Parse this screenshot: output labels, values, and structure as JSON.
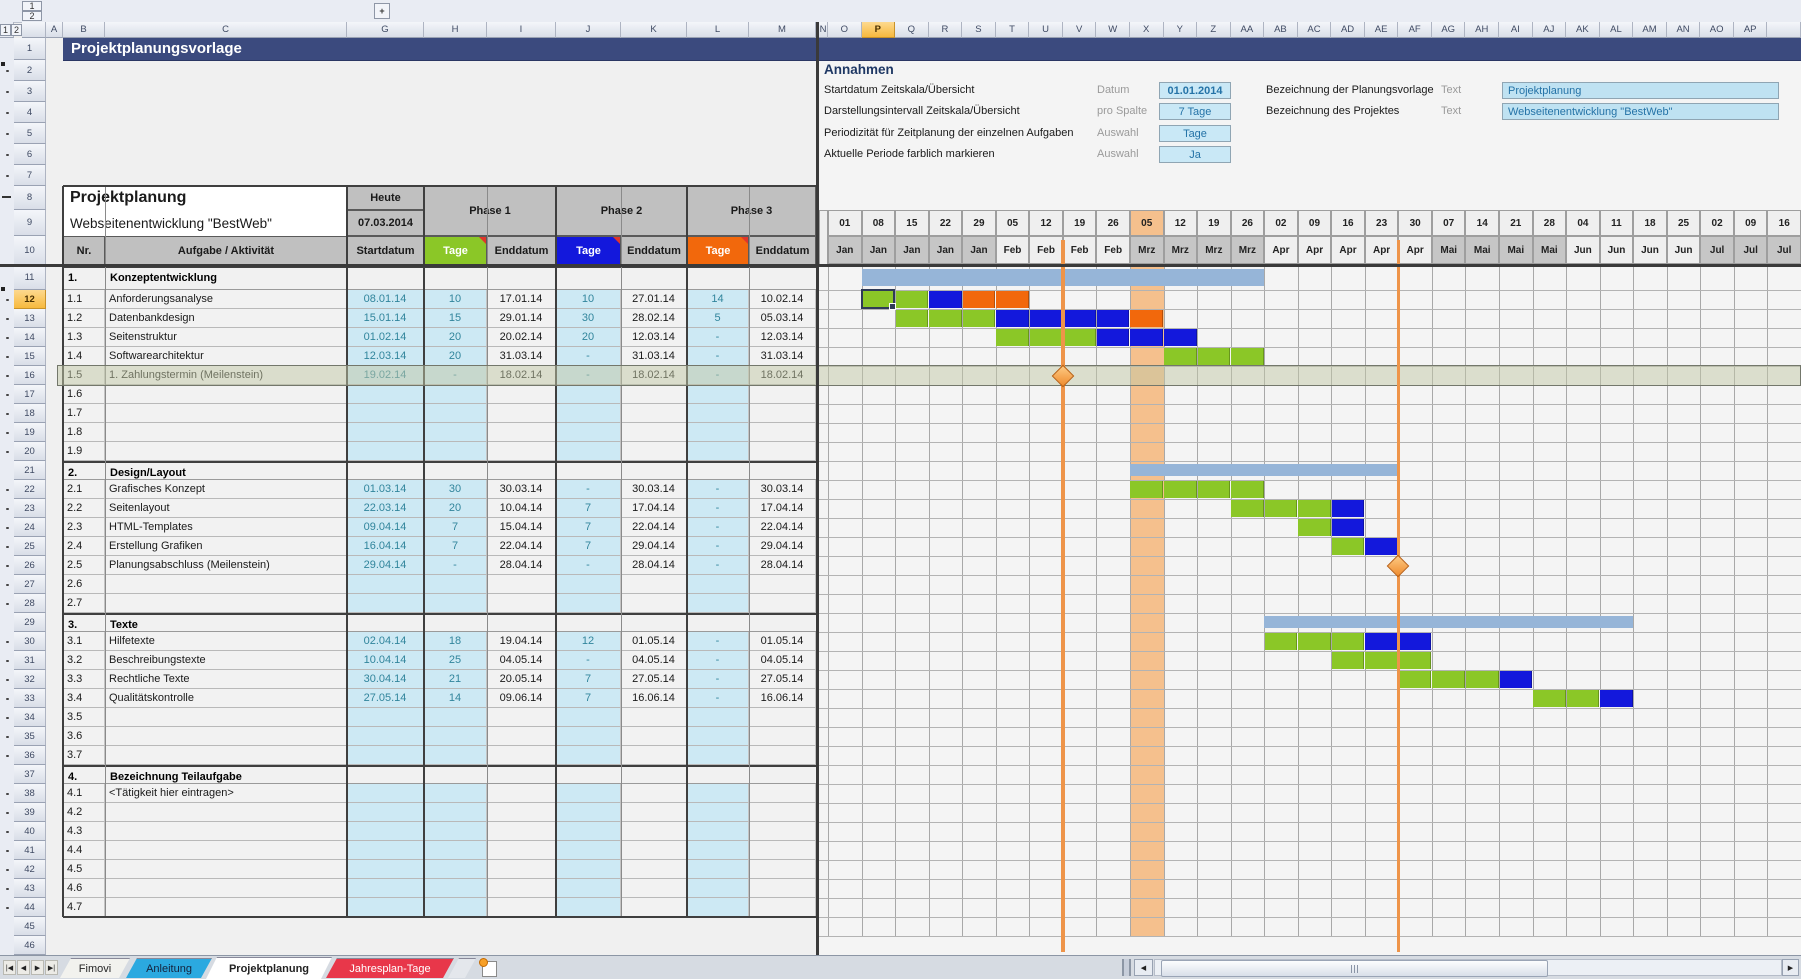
{
  "title": "Projektplanungsvorlage",
  "outline": {
    "col_levels": [
      "1",
      "2"
    ],
    "row_levels": [
      "1",
      "2"
    ],
    "expand_button": "+"
  },
  "columns_left": [
    "A",
    "B",
    "C",
    "G",
    "H",
    "I",
    "J",
    "K",
    "L",
    "M"
  ],
  "columns_right": [
    "N",
    "O",
    "P",
    "Q",
    "R",
    "S",
    "T",
    "U",
    "V",
    "W",
    "X",
    "Y",
    "Z",
    "AA",
    "AB",
    "AC",
    "AD",
    "AE",
    "AF",
    "AG",
    "AH",
    "AI",
    "AJ",
    "AK",
    "AL",
    "AM",
    "AN",
    "AO",
    "AP"
  ],
  "row_count": 46,
  "selected_cell": {
    "column": "P",
    "row": 12
  },
  "assumptions": {
    "heading": "Annahmen",
    "rows": [
      {
        "label": "Startdatum Zeitskala/Übersicht",
        "type": "Datum",
        "value": "01.01.2014"
      },
      {
        "label": "Darstellungsintervall Zeitskala/Übersicht",
        "type": "pro Spalte",
        "value": "7 Tage"
      },
      {
        "label": "Periodizität für Zeitplanung der einzelnen Aufgaben",
        "type": "Auswahl",
        "value": "Tage"
      },
      {
        "label": "Aktuelle Periode farblich markieren",
        "type": "Auswahl",
        "value": "Ja"
      }
    ],
    "naming": [
      {
        "label": "Bezeichnung der Planungsvorlage",
        "type": "Text",
        "value": "Projektplanung"
      },
      {
        "label": "Bezeichnung des Projektes",
        "type": "Text",
        "value": "Webseitenentwicklung \"BestWeb\""
      }
    ]
  },
  "table": {
    "header": {
      "title": "Projektplanung",
      "subtitle": "Webseitenentwicklung \"BestWeb\"",
      "today_label": "Heute",
      "today_value": "07.03.2014",
      "phases": [
        "Phase 1",
        "Phase 2",
        "Phase 3"
      ],
      "col_nr": "Nr.",
      "col_task": "Aufgabe / Aktivität",
      "col_start": "Startdatum",
      "col_days": "Tage",
      "col_end": "Enddatum"
    },
    "sections": [
      {
        "nr": "1.",
        "name": "Konzeptentwicklung",
        "header_row": 11,
        "tasks": [
          {
            "nr": "1.1",
            "name": "Anforderungsanalyse",
            "start": "08.01.14",
            "d1": "10",
            "e1": "17.01.14",
            "d2": "10",
            "e2": "27.01.14",
            "d3": "14",
            "e3": "10.02.14"
          },
          {
            "nr": "1.2",
            "name": "Datenbankdesign",
            "start": "15.01.14",
            "d1": "15",
            "e1": "29.01.14",
            "d2": "30",
            "e2": "28.02.14",
            "d3": "5",
            "e3": "05.03.14"
          },
          {
            "nr": "1.3",
            "name": "Seitenstruktur",
            "start": "01.02.14",
            "d1": "20",
            "e1": "20.02.14",
            "d2": "20",
            "e2": "12.03.14",
            "d3": "-",
            "e3": "12.03.14"
          },
          {
            "nr": "1.4",
            "name": "Softwarearchitektur",
            "start": "12.03.14",
            "d1": "20",
            "e1": "31.03.14",
            "d2": "-",
            "e2": "31.03.14",
            "d3": "-",
            "e3": "31.03.14"
          },
          {
            "nr": "1.5",
            "name": "1. Zahlungstermin (Meilenstein)",
            "start": "19.02.14",
            "d1": "-",
            "e1": "18.02.14",
            "d2": "-",
            "e2": "18.02.14",
            "d3": "-",
            "e3": "18.02.14",
            "highlight": true
          },
          {
            "nr": "1.6"
          },
          {
            "nr": "1.7"
          },
          {
            "nr": "1.8"
          },
          {
            "nr": "1.9"
          }
        ]
      },
      {
        "nr": "2.",
        "name": "Design/Layout",
        "header_row": 21,
        "tasks": [
          {
            "nr": "2.1",
            "name": "Grafisches Konzept",
            "start": "01.03.14",
            "d1": "30",
            "e1": "30.03.14",
            "d2": "-",
            "e2": "30.03.14",
            "d3": "-",
            "e3": "30.03.14"
          },
          {
            "nr": "2.2",
            "name": "Seitenlayout",
            "start": "22.03.14",
            "d1": "20",
            "e1": "10.04.14",
            "d2": "7",
            "e2": "17.04.14",
            "d3": "-",
            "e3": "17.04.14"
          },
          {
            "nr": "2.3",
            "name": "HTML-Templates",
            "start": "09.04.14",
            "d1": "7",
            "e1": "15.04.14",
            "d2": "7",
            "e2": "22.04.14",
            "d3": "-",
            "e3": "22.04.14"
          },
          {
            "nr": "2.4",
            "name": "Erstellung Grafiken",
            "start": "16.04.14",
            "d1": "7",
            "e1": "22.04.14",
            "d2": "7",
            "e2": "29.04.14",
            "d3": "-",
            "e3": "29.04.14"
          },
          {
            "nr": "2.5",
            "name": "Planungsabschluss (Meilenstein)",
            "start": "29.04.14",
            "d1": "-",
            "e1": "28.04.14",
            "d2": "-",
            "e2": "28.04.14",
            "d3": "-",
            "e3": "28.04.14"
          },
          {
            "nr": "2.6"
          },
          {
            "nr": "2.7"
          }
        ]
      },
      {
        "nr": "3.",
        "name": "Texte",
        "header_row": 29,
        "tasks": [
          {
            "nr": "3.1",
            "name": "Hilfetexte",
            "start": "02.04.14",
            "d1": "18",
            "e1": "19.04.14",
            "d2": "12",
            "e2": "01.05.14",
            "d3": "-",
            "e3": "01.05.14"
          },
          {
            "nr": "3.2",
            "name": "Beschreibungstexte",
            "start": "10.04.14",
            "d1": "25",
            "e1": "04.05.14",
            "d2": "-",
            "e2": "04.05.14",
            "d3": "-",
            "e3": "04.05.14"
          },
          {
            "nr": "3.3",
            "name": "Rechtliche Texte",
            "start": "30.04.14",
            "d1": "21",
            "e1": "20.05.14",
            "d2": "7",
            "e2": "27.05.14",
            "d3": "-",
            "e3": "27.05.14"
          },
          {
            "nr": "3.4",
            "name": "Qualitätskontrolle",
            "start": "27.05.14",
            "d1": "14",
            "e1": "09.06.14",
            "d2": "7",
            "e2": "16.06.14",
            "d3": "-",
            "e3": "16.06.14"
          },
          {
            "nr": "3.5"
          },
          {
            "nr": "3.6"
          },
          {
            "nr": "3.7"
          }
        ]
      },
      {
        "nr": "4.",
        "name": "Bezeichnung Teilaufgabe",
        "header_row": 37,
        "tasks": [
          {
            "nr": "4.1",
            "name": "<Tätigkeit hier eintragen>"
          },
          {
            "nr": "4.2"
          },
          {
            "nr": "4.3"
          },
          {
            "nr": "4.4"
          },
          {
            "nr": "4.5"
          },
          {
            "nr": "4.6"
          },
          {
            "nr": "4.7"
          }
        ]
      }
    ]
  },
  "gantt": {
    "days": [
      "01",
      "08",
      "15",
      "22",
      "29",
      "05",
      "12",
      "19",
      "26",
      "05",
      "12",
      "19",
      "26",
      "02",
      "09",
      "16",
      "23",
      "30",
      "07",
      "14",
      "21",
      "28",
      "04",
      "11",
      "18",
      "25",
      "02",
      "09",
      "16"
    ],
    "months": [
      "Jan",
      "Jan",
      "Jan",
      "Jan",
      "Jan",
      "Feb",
      "Feb",
      "Feb",
      "Feb",
      "Mrz",
      "Mrz",
      "Mrz",
      "Mrz",
      "Apr",
      "Apr",
      "Apr",
      "Apr",
      "Apr",
      "Mai",
      "Mai",
      "Mai",
      "Mai",
      "Jun",
      "Jun",
      "Jun",
      "Jun",
      "Jul",
      "Jul",
      "Jul"
    ],
    "month_shade": [
      1,
      1,
      1,
      1,
      1,
      0,
      0,
      0,
      0,
      1,
      1,
      1,
      1,
      0,
      0,
      0,
      0,
      0,
      1,
      1,
      1,
      1,
      0,
      0,
      0,
      0,
      1,
      1,
      1
    ],
    "current_col": 10,
    "summary_bars": [
      {
        "row": 11,
        "from": 2,
        "to": 13
      },
      {
        "row": 21,
        "from": 10,
        "to": 17
      },
      {
        "row": 29,
        "from": 14,
        "to": 24
      }
    ],
    "bars": [
      {
        "row": 12,
        "segments": [
          {
            "from": 2,
            "to": 3,
            "color": "green"
          },
          {
            "from": 4,
            "to": 4,
            "color": "blue"
          },
          {
            "from": 5,
            "to": 6,
            "color": "orange"
          }
        ]
      },
      {
        "row": 13,
        "segments": [
          {
            "from": 3,
            "to": 5,
            "color": "green"
          },
          {
            "from": 6,
            "to": 9,
            "color": "blue"
          },
          {
            "from": 10,
            "to": 10,
            "color": "orange"
          }
        ]
      },
      {
        "row": 14,
        "segments": [
          {
            "from": 6,
            "to": 8,
            "color": "green"
          },
          {
            "from": 9,
            "to": 11,
            "color": "blue"
          }
        ]
      },
      {
        "row": 15,
        "segments": [
          {
            "from": 11,
            "to": 13,
            "color": "green"
          }
        ]
      },
      {
        "row": 22,
        "segments": [
          {
            "from": 10,
            "to": 13,
            "color": "green"
          }
        ]
      },
      {
        "row": 23,
        "segments": [
          {
            "from": 13,
            "to": 15,
            "color": "green"
          },
          {
            "from": 16,
            "to": 16,
            "color": "blue"
          }
        ]
      },
      {
        "row": 24,
        "segments": [
          {
            "from": 15,
            "to": 15,
            "color": "green"
          },
          {
            "from": 16,
            "to": 16,
            "color": "blue"
          }
        ]
      },
      {
        "row": 25,
        "segments": [
          {
            "from": 16,
            "to": 16,
            "color": "green"
          },
          {
            "from": 17,
            "to": 17,
            "color": "blue"
          }
        ]
      },
      {
        "row": 30,
        "segments": [
          {
            "from": 14,
            "to": 16,
            "color": "green"
          },
          {
            "from": 17,
            "to": 18,
            "color": "blue"
          }
        ]
      },
      {
        "row": 31,
        "segments": [
          {
            "from": 16,
            "to": 18,
            "color": "green"
          }
        ]
      },
      {
        "row": 32,
        "segments": [
          {
            "from": 18,
            "to": 20,
            "color": "green"
          },
          {
            "from": 21,
            "to": 21,
            "color": "blue"
          }
        ]
      },
      {
        "row": 33,
        "segments": [
          {
            "from": 22,
            "to": 23,
            "color": "green"
          },
          {
            "from": 24,
            "to": 24,
            "color": "blue"
          }
        ]
      }
    ],
    "milestones": [
      {
        "row": 16,
        "boundary": 8
      },
      {
        "row": 26,
        "boundary": 18
      }
    ]
  },
  "sheet_tabs": {
    "tabs": [
      {
        "label": "Fimovi",
        "style": "plain"
      },
      {
        "label": "Anleitung",
        "style": "blue"
      },
      {
        "label": "Projektplanung",
        "style": "active"
      },
      {
        "label": "Jahresplan-Tage",
        "style": "red"
      }
    ]
  },
  "colors": {
    "title_navy": "#3B4A7E",
    "annahmen_navy": "#1F3864",
    "phase1_green": "#8BC727",
    "phase2_blue": "#1318DC",
    "phase3_orange": "#F2680C",
    "summary_blue": "#96B5D8",
    "current_period_peach": "#F5C08D",
    "milestone_orange": "#EE9449",
    "editable_cell_blue": "#CDE9F4",
    "editable_text_teal": "#31859C",
    "header_gray": "#C0C0C0",
    "row_highlight_olive": "#C8CCAC",
    "selection_gold": "#FBC34C",
    "tab_blue": "#2BA9E0",
    "tab_red": "#E8374A"
  }
}
